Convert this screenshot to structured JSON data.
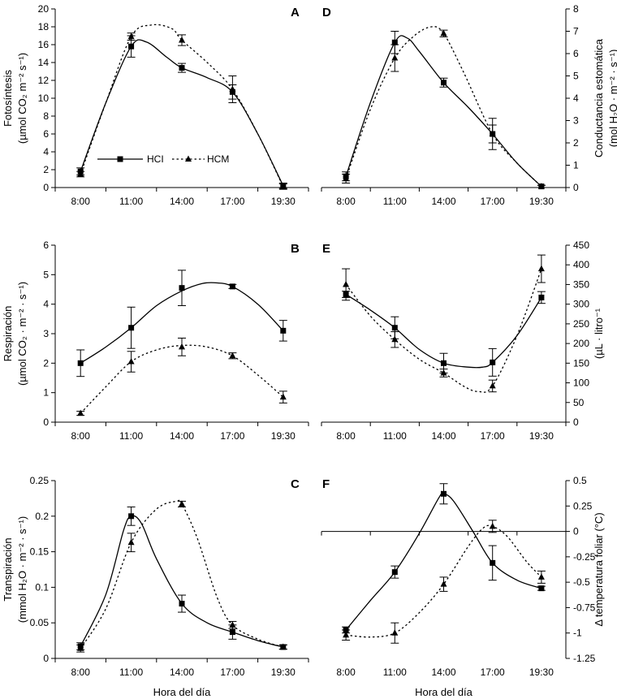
{
  "figure": {
    "x_title": "Hora del día",
    "legend": {
      "HCI": "HCI",
      "HCM": "HCM"
    },
    "colors": {
      "ink": "#000000"
    }
  },
  "chart_data": [
    {
      "panel": "A",
      "type": "line",
      "categories": [
        "8:00",
        "11:00",
        "14:00",
        "17:00",
        "19:30"
      ],
      "ylabel_lines": [
        "Fotosíntesis",
        "(µmol CO₂ m⁻² s⁻¹)"
      ],
      "ylim": [
        0,
        20
      ],
      "yticks": [
        0,
        2,
        4,
        6,
        8,
        10,
        12,
        14,
        16,
        18,
        20
      ],
      "ytick_labels": [
        "0",
        "2",
        "4",
        "6",
        "8",
        "10",
        "12",
        "14",
        "16",
        "18",
        "20"
      ],
      "y_axis_side": "left",
      "x_title": "",
      "series": [
        {
          "name": "HCI",
          "marker": "square",
          "line": "solid",
          "x": [
            0,
            1,
            2,
            3,
            4
          ],
          "values": [
            1.8,
            15.8,
            13.4,
            10.7,
            0.2
          ],
          "err": [
            0.4,
            1.2,
            0.5,
            0.8,
            0.3
          ],
          "curve_x": [
            0,
            0.5,
            1,
            1.3,
            1.7,
            2,
            2.5,
            3,
            3.5,
            4
          ],
          "curve_y": [
            1.8,
            9.5,
            15.8,
            16.3,
            14.6,
            13.4,
            12.3,
            10.7,
            6.0,
            0.2
          ]
        },
        {
          "name": "HCM",
          "marker": "triangle",
          "line": "dotted",
          "x": [
            0,
            1,
            2,
            3,
            4
          ],
          "values": [
            1.5,
            16.9,
            16.5,
            11.0,
            0.1
          ],
          "err": [
            0.3,
            0.4,
            0.6,
            1.5,
            0.3
          ],
          "curve_x": [
            0,
            0.5,
            1,
            1.4,
            1.8,
            2,
            2.5,
            3,
            3.5,
            4
          ],
          "curve_y": [
            1.5,
            9.5,
            16.9,
            18.2,
            17.8,
            16.5,
            14.0,
            11.0,
            6.0,
            0.1
          ]
        }
      ]
    },
    {
      "panel": "D",
      "type": "line",
      "categories": [
        "8:00",
        "11:00",
        "14:00",
        "17:00",
        "19:30"
      ],
      "ylabel_lines": [
        "Conductancia estomática",
        "(mol H₂O · m⁻² · s⁻¹)"
      ],
      "ylim": [
        0,
        8
      ],
      "yticks": [
        0,
        1,
        2,
        3,
        4,
        5,
        6,
        7,
        8
      ],
      "ytick_labels": [
        "0",
        "1",
        "2",
        "3",
        "4",
        "5",
        "6",
        "7",
        "8"
      ],
      "y_axis_side": "right",
      "x_title": "",
      "series": [
        {
          "name": "HCI",
          "marker": "square",
          "line": "solid",
          "x": [
            0,
            1,
            2,
            3,
            4
          ],
          "values": [
            0.5,
            6.5,
            4.7,
            2.4,
            0.05
          ],
          "err": [
            0.2,
            0.5,
            0.2,
            0.7,
            0.05
          ],
          "curve_x": [
            0,
            0.5,
            1,
            1.25,
            1.5,
            2,
            2.5,
            3,
            3.5,
            4
          ],
          "curve_y": [
            0.5,
            3.8,
            6.5,
            6.7,
            6.1,
            4.7,
            3.6,
            2.4,
            1.1,
            0.05
          ]
        },
        {
          "name": "HCM",
          "marker": "triangle",
          "line": "dotted",
          "x": [
            0,
            1,
            2,
            3,
            4
          ],
          "values": [
            0.4,
            5.8,
            6.9,
            2.4,
            0.05
          ],
          "err": [
            0.2,
            0.6,
            0.15,
            0.4,
            0.05
          ],
          "curve_x": [
            0,
            0.5,
            1,
            1.4,
            1.75,
            2,
            2.4,
            3,
            3.5,
            4
          ],
          "curve_y": [
            0.4,
            3.5,
            5.8,
            6.8,
            7.2,
            6.9,
            5.2,
            2.4,
            1.1,
            0.05
          ]
        }
      ]
    },
    {
      "panel": "B",
      "type": "line",
      "categories": [
        "8:00",
        "11:00",
        "14:00",
        "17:00",
        "19:30"
      ],
      "ylabel_lines": [
        "Respiración",
        "(µmol CO₂ · m⁻² · s⁻¹)"
      ],
      "ylim": [
        0,
        6
      ],
      "yticks": [
        0,
        1,
        2,
        3,
        4,
        5,
        6
      ],
      "ytick_labels": [
        "0",
        "1",
        "2",
        "3",
        "4",
        "5",
        "6"
      ],
      "y_axis_side": "left",
      "x_title": "",
      "series": [
        {
          "name": "HCI",
          "marker": "square",
          "line": "solid",
          "x": [
            0,
            1,
            2,
            3,
            4
          ],
          "values": [
            2.0,
            3.2,
            4.55,
            4.6,
            3.1
          ],
          "err": [
            0.45,
            0.7,
            0.6,
            0.07,
            0.35
          ],
          "curve_x": [
            0,
            0.5,
            1,
            1.5,
            2,
            2.4,
            2.7,
            3,
            3.5,
            4
          ],
          "curve_y": [
            2.0,
            2.55,
            3.2,
            3.95,
            4.45,
            4.7,
            4.72,
            4.6,
            4.0,
            3.1
          ]
        },
        {
          "name": "HCM",
          "marker": "triangle",
          "line": "dotted",
          "x": [
            0,
            1,
            2,
            3,
            4
          ],
          "values": [
            0.3,
            2.05,
            2.55,
            2.25,
            0.85
          ],
          "err": [
            0.07,
            0.35,
            0.3,
            0.1,
            0.2
          ],
          "curve_x": [
            0,
            0.5,
            1,
            1.5,
            2,
            2.5,
            3,
            3.5,
            4
          ],
          "curve_y": [
            0.3,
            1.2,
            2.05,
            2.45,
            2.6,
            2.55,
            2.25,
            1.6,
            0.85
          ]
        }
      ]
    },
    {
      "panel": "E",
      "type": "line",
      "categories": [
        "8:00",
        "11:00",
        "14:00",
        "17:00",
        "19:30"
      ],
      "ylabel_lines": [
        "(µL · litro⁻¹"
      ],
      "ylim": [
        0,
        450
      ],
      "yticks": [
        0,
        50,
        100,
        150,
        200,
        250,
        300,
        350,
        400,
        450
      ],
      "ytick_labels": [
        "0",
        "50",
        "100",
        "150",
        "200",
        "250",
        "300",
        "350",
        "400",
        "450"
      ],
      "y_axis_side": "right",
      "x_title": "",
      "series": [
        {
          "name": "HCI",
          "marker": "square",
          "line": "solid",
          "x": [
            0,
            1,
            2,
            3,
            4
          ],
          "values": [
            325,
            240,
            150,
            152,
            317
          ],
          "err": [
            8,
            28,
            25,
            35,
            15
          ],
          "curve_x": [
            0,
            0.5,
            1,
            1.5,
            2,
            2.5,
            2.8,
            3,
            3.5,
            4
          ],
          "curve_y": [
            325,
            285,
            240,
            185,
            150,
            140,
            140,
            152,
            220,
            317
          ]
        },
        {
          "name": "HCM",
          "marker": "triangle",
          "line": "dotted",
          "x": [
            0,
            1,
            2,
            3,
            4
          ],
          "values": [
            350,
            210,
            125,
            92,
            390
          ],
          "err": [
            40,
            20,
            10,
            15,
            35
          ],
          "curve_x": [
            0,
            0.5,
            1,
            1.5,
            2,
            2.4,
            2.7,
            3,
            3.5,
            4
          ],
          "curve_y": [
            350,
            270,
            210,
            160,
            125,
            92,
            78,
            92,
            220,
            390
          ]
        }
      ]
    },
    {
      "panel": "C",
      "type": "line",
      "categories": [
        "8:00",
        "11:00",
        "14:00",
        "17:00",
        "19:30"
      ],
      "ylabel_lines": [
        "Transpiración",
        "(mmol H₂O · m⁻² · s⁻¹)"
      ],
      "ylim": [
        0,
        0.25
      ],
      "yticks": [
        0,
        0.05,
        0.1,
        0.15,
        0.2,
        0.25
      ],
      "ytick_labels": [
        "0",
        "0.05",
        "0.1",
        "0.15",
        "0.2",
        "0.25"
      ],
      "y_axis_side": "left",
      "x_title": "Hora del día",
      "series": [
        {
          "name": "HCI",
          "marker": "square",
          "line": "solid",
          "x": [
            0,
            1,
            2,
            3,
            4
          ],
          "values": [
            0.017,
            0.2,
            0.077,
            0.037,
            0.016
          ],
          "err": [
            0.005,
            0.013,
            0.012,
            0.01,
            0.003
          ],
          "curve_x": [
            0,
            0.5,
            0.85,
            1,
            1.2,
            1.5,
            2,
            2.5,
            3,
            3.5,
            4
          ],
          "curve_y": [
            0.017,
            0.09,
            0.18,
            0.2,
            0.19,
            0.14,
            0.077,
            0.05,
            0.037,
            0.025,
            0.016
          ]
        },
        {
          "name": "HCM",
          "marker": "triangle",
          "line": "dotted",
          "x": [
            0,
            1,
            2,
            3,
            4
          ],
          "values": [
            0.014,
            0.163,
            0.217,
            0.047,
            0.016
          ],
          "err": [
            0.005,
            0.013,
            0.004,
            0.005,
            0.003
          ],
          "curve_x": [
            0,
            0.5,
            1,
            1.5,
            1.9,
            2,
            2.3,
            2.7,
            3,
            3.5,
            4
          ],
          "curve_y": [
            0.014,
            0.07,
            0.163,
            0.21,
            0.221,
            0.217,
            0.17,
            0.085,
            0.047,
            0.027,
            0.016
          ]
        }
      ]
    },
    {
      "panel": "F",
      "type": "line",
      "categories": [
        "8:00",
        "11:00",
        "14:00",
        "17:00",
        "19:30"
      ],
      "ylabel_lines": [
        "Δ temperatura foliar  (°C)"
      ],
      "ylim": [
        -1.25,
        0.5
      ],
      "yticks": [
        -1.25,
        -1,
        -0.75,
        -0.5,
        -0.25,
        0,
        0.25,
        0.5
      ],
      "ytick_labels": [
        "-1.25",
        "-1",
        "-0.75",
        "-0.5",
        "-0.25",
        "0",
        "0.25",
        "0.5"
      ],
      "y_axis_side": "right",
      "zero_line": true,
      "x_title": "Hora del día",
      "series": [
        {
          "name": "HCI",
          "marker": "square",
          "line": "solid",
          "x": [
            0,
            1,
            2,
            3,
            4
          ],
          "values": [
            -0.97,
            -0.4,
            0.37,
            -0.31,
            -0.56
          ],
          "err": [
            0.03,
            0.06,
            0.1,
            0.17,
            0.02
          ],
          "curve_x": [
            0,
            0.5,
            1,
            1.5,
            1.9,
            2,
            2.2,
            2.6,
            3,
            3.5,
            4
          ],
          "curve_y": [
            -0.97,
            -0.68,
            -0.4,
            -0.02,
            0.33,
            0.37,
            0.3,
            0.0,
            -0.31,
            -0.48,
            -0.56
          ]
        },
        {
          "name": "HCM",
          "marker": "triangle",
          "line": "dotted",
          "x": [
            0,
            1,
            2,
            3,
            4
          ],
          "values": [
            -1.02,
            -1.0,
            -0.52,
            0.05,
            -0.45
          ],
          "err": [
            0.05,
            0.1,
            0.07,
            0.06,
            0.06
          ],
          "curve_x": [
            0,
            0.5,
            1,
            1.5,
            2,
            2.5,
            2.8,
            3,
            3.3,
            3.7,
            4
          ],
          "curve_y": [
            -1.02,
            -1.04,
            -1.0,
            -0.8,
            -0.52,
            -0.15,
            0.03,
            0.05,
            -0.05,
            -0.3,
            -0.45
          ]
        }
      ]
    }
  ]
}
